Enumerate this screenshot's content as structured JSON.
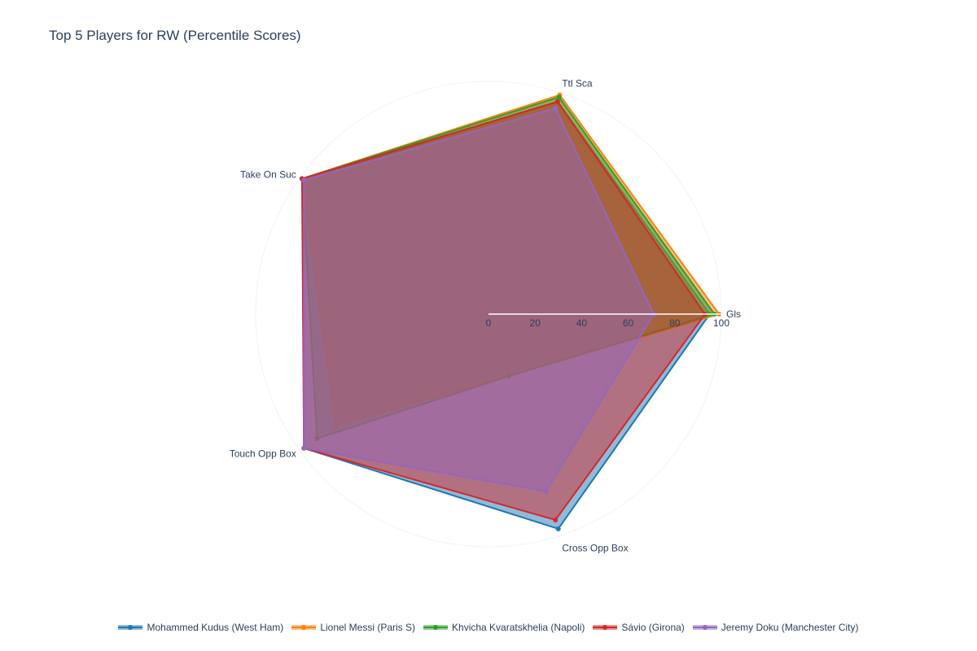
{
  "chart_data": {
    "type": "radar",
    "title": "Top 5 Players for RW (Percentile Scores)",
    "axes": [
      "Gls",
      "Ttl Sca",
      "Take On Suc",
      "Touch Opp Box",
      "Cross Opp Box"
    ],
    "radial_range": [
      0,
      100
    ],
    "radial_ticks": [
      "0",
      "20",
      "40",
      "60",
      "80",
      "100"
    ],
    "grid": true,
    "legend_position": "bottom",
    "series": [
      {
        "name": "Mohammed Kudus (West Ham)",
        "color": "#1f77b4",
        "values": [
          95,
          96,
          98,
          98,
          97
        ]
      },
      {
        "name": "Lionel Messi (Paris S)",
        "color": "#ff7f0e",
        "values": [
          99,
          99,
          99,
          81,
          28
        ]
      },
      {
        "name": "Khvicha Kvaratskhelia (Napoli)",
        "color": "#2ca02c",
        "values": [
          97,
          98,
          99,
          91,
          28
        ]
      },
      {
        "name": "Sávio (Girona)",
        "color": "#d62728",
        "values": [
          93,
          96,
          99,
          98,
          93
        ]
      },
      {
        "name": "Jeremy Doku (Manchester City)",
        "color": "#9467bd",
        "values": [
          71,
          93,
          98,
          98,
          80
        ]
      }
    ]
  }
}
